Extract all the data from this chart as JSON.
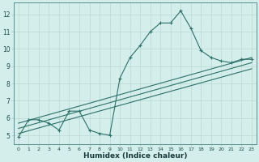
{
  "title": "",
  "xlabel": "Humidex (Indice chaleur)",
  "ylabel": "",
  "xlim": [
    -0.5,
    23.5
  ],
  "ylim": [
    4.5,
    12.7
  ],
  "xticks": [
    0,
    1,
    2,
    3,
    4,
    5,
    6,
    7,
    8,
    9,
    10,
    11,
    12,
    13,
    14,
    15,
    16,
    17,
    18,
    19,
    20,
    21,
    22,
    23
  ],
  "yticks": [
    5,
    6,
    7,
    8,
    9,
    10,
    11,
    12
  ],
  "bg_color": "#d4eeeb",
  "grid_color": "#b8d8d4",
  "line_color": "#2d7068",
  "line1_x": [
    0,
    1,
    2,
    3,
    4,
    5,
    6,
    7,
    8,
    9,
    10,
    11,
    12,
    13,
    14,
    15,
    16,
    17,
    18,
    19,
    20,
    21,
    22,
    23
  ],
  "line1_y": [
    4.9,
    5.9,
    5.9,
    5.7,
    5.3,
    6.4,
    6.4,
    5.3,
    5.1,
    5.0,
    8.3,
    9.5,
    10.2,
    11.0,
    11.5,
    11.5,
    12.2,
    11.2,
    9.9,
    9.5,
    9.3,
    9.2,
    9.4,
    9.4
  ],
  "line2_x": [
    0,
    23
  ],
  "line2_y": [
    5.7,
    9.5
  ],
  "line3_x": [
    0,
    23
  ],
  "line3_y": [
    5.4,
    9.2
  ],
  "line4_x": [
    0,
    23
  ],
  "line4_y": [
    5.1,
    8.85
  ]
}
